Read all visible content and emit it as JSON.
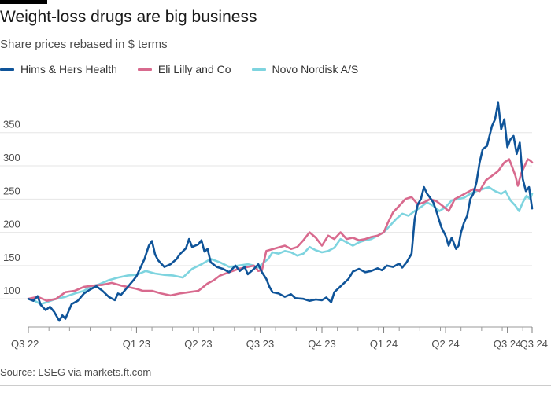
{
  "header": {
    "title": "Weight-loss drugs are big business",
    "subtitle": "Share prices rebased in $ terms"
  },
  "legend": [
    {
      "name": "Hims & Hers Health",
      "color": "#0f5499"
    },
    {
      "name": "Eli Lilly and Co",
      "color": "#d86a8e"
    },
    {
      "name": "Novo Nordisk A/S",
      "color": "#7ed4df"
    }
  ],
  "footer": {
    "source": "Source: LSEG via markets.ft.com"
  },
  "chart_data": {
    "type": "line",
    "title": "Weight-loss drugs are big business",
    "subtitle": "Share prices rebased in $ terms",
    "xlabel": "",
    "ylabel": "",
    "xlim": [
      0,
      8.15
    ],
    "ylim": [
      60,
      410
    ],
    "x_ticks": [
      {
        "x": 0,
        "label": "Q3 22"
      },
      {
        "x": 1.75,
        "label": "Q1 23"
      },
      {
        "x": 2.75,
        "label": "Q2 23"
      },
      {
        "x": 3.75,
        "label": "Q3 23"
      },
      {
        "x": 4.75,
        "label": "Q4 23"
      },
      {
        "x": 5.75,
        "label": "Q1 24"
      },
      {
        "x": 6.75,
        "label": "Q2 24"
      },
      {
        "x": 7.75,
        "label": "Q3 24"
      },
      {
        "x": 8.15,
        "label": "Q3 24"
      }
    ],
    "y_ticks": [
      100,
      150,
      200,
      250,
      300,
      350
    ],
    "grid": true,
    "legend_position": "top-left",
    "series": [
      {
        "name": "Hims & Hers Health",
        "color": "#0f5499",
        "points": [
          [
            0,
            100
          ],
          [
            0.08,
            97
          ],
          [
            0.15,
            104
          ],
          [
            0.2,
            91
          ],
          [
            0.28,
            83
          ],
          [
            0.35,
            88
          ],
          [
            0.42,
            80
          ],
          [
            0.5,
            67
          ],
          [
            0.55,
            75
          ],
          [
            0.6,
            70
          ],
          [
            0.7,
            92
          ],
          [
            0.8,
            97
          ],
          [
            0.9,
            108
          ],
          [
            1.0,
            114
          ],
          [
            1.1,
            119
          ],
          [
            1.2,
            112
          ],
          [
            1.3,
            103
          ],
          [
            1.4,
            98
          ],
          [
            1.45,
            108
          ],
          [
            1.5,
            106
          ],
          [
            1.6,
            117
          ],
          [
            1.7,
            128
          ],
          [
            1.75,
            134
          ],
          [
            1.82,
            148
          ],
          [
            1.88,
            160
          ],
          [
            1.95,
            180
          ],
          [
            2.0,
            187
          ],
          [
            2.05,
            167
          ],
          [
            2.1,
            158
          ],
          [
            2.2,
            148
          ],
          [
            2.3,
            152
          ],
          [
            2.4,
            160
          ],
          [
            2.45,
            167
          ],
          [
            2.55,
            176
          ],
          [
            2.6,
            190
          ],
          [
            2.65,
            178
          ],
          [
            2.75,
            182
          ],
          [
            2.8,
            188
          ],
          [
            2.85,
            171
          ],
          [
            2.9,
            175
          ],
          [
            2.95,
            155
          ],
          [
            3.05,
            148
          ],
          [
            3.15,
            145
          ],
          [
            3.25,
            140
          ],
          [
            3.35,
            150
          ],
          [
            3.42,
            142
          ],
          [
            3.5,
            148
          ],
          [
            3.55,
            137
          ],
          [
            3.65,
            145
          ],
          [
            3.72,
            152
          ],
          [
            3.78,
            140
          ],
          [
            3.85,
            130
          ],
          [
            3.9,
            118
          ],
          [
            3.95,
            110
          ],
          [
            4.05,
            108
          ],
          [
            4.15,
            103
          ],
          [
            4.25,
            107
          ],
          [
            4.32,
            101
          ],
          [
            4.45,
            100
          ],
          [
            4.55,
            97
          ],
          [
            4.65,
            99
          ],
          [
            4.75,
            98
          ],
          [
            4.82,
            102
          ],
          [
            4.9,
            95
          ],
          [
            4.95,
            110
          ],
          [
            5.02,
            116
          ],
          [
            5.1,
            123
          ],
          [
            5.18,
            130
          ],
          [
            5.25,
            141
          ],
          [
            5.35,
            145
          ],
          [
            5.45,
            140
          ],
          [
            5.55,
            142
          ],
          [
            5.65,
            146
          ],
          [
            5.72,
            143
          ],
          [
            5.8,
            150
          ],
          [
            5.9,
            148
          ],
          [
            6.0,
            153
          ],
          [
            6.05,
            147
          ],
          [
            6.12,
            155
          ],
          [
            6.2,
            168
          ],
          [
            6.25,
            220
          ],
          [
            6.3,
            242
          ],
          [
            6.35,
            250
          ],
          [
            6.4,
            268
          ],
          [
            6.45,
            258
          ],
          [
            6.5,
            252
          ],
          [
            6.55,
            245
          ],
          [
            6.6,
            232
          ],
          [
            6.68,
            208
          ],
          [
            6.75,
            195
          ],
          [
            6.8,
            180
          ],
          [
            6.85,
            192
          ],
          [
            6.92,
            175
          ],
          [
            6.96,
            180
          ],
          [
            7.0,
            200
          ],
          [
            7.05,
            215
          ],
          [
            7.1,
            225
          ],
          [
            7.15,
            250
          ],
          [
            7.2,
            258
          ],
          [
            7.25,
            275
          ],
          [
            7.3,
            305
          ],
          [
            7.35,
            325
          ],
          [
            7.42,
            330
          ],
          [
            7.5,
            360
          ],
          [
            7.55,
            370
          ],
          [
            7.6,
            395
          ],
          [
            7.65,
            355
          ],
          [
            7.7,
            370
          ],
          [
            7.75,
            328
          ],
          [
            7.8,
            340
          ],
          [
            7.85,
            345
          ],
          [
            7.9,
            318
          ],
          [
            7.95,
            335
          ],
          [
            8.0,
            280
          ],
          [
            8.05,
            262
          ],
          [
            8.1,
            268
          ],
          [
            8.15,
            236
          ]
        ]
      },
      {
        "name": "Eli Lilly and Co",
        "color": "#d86a8e",
        "points": [
          [
            0,
            100
          ],
          [
            0.15,
            103
          ],
          [
            0.3,
            97
          ],
          [
            0.45,
            100
          ],
          [
            0.6,
            110
          ],
          [
            0.75,
            112
          ],
          [
            0.9,
            118
          ],
          [
            1.05,
            120
          ],
          [
            1.2,
            121
          ],
          [
            1.35,
            124
          ],
          [
            1.5,
            120
          ],
          [
            1.6,
            118
          ],
          [
            1.75,
            115
          ],
          [
            1.85,
            112
          ],
          [
            2.0,
            112
          ],
          [
            2.15,
            108
          ],
          [
            2.3,
            105
          ],
          [
            2.45,
            108
          ],
          [
            2.6,
            110
          ],
          [
            2.75,
            112
          ],
          [
            2.9,
            123
          ],
          [
            3.0,
            128
          ],
          [
            3.1,
            135
          ],
          [
            3.25,
            140
          ],
          [
            3.4,
            145
          ],
          [
            3.55,
            148
          ],
          [
            3.65,
            150
          ],
          [
            3.72,
            142
          ],
          [
            3.78,
            143
          ],
          [
            3.85,
            172
          ],
          [
            4.0,
            176
          ],
          [
            4.15,
            180
          ],
          [
            4.25,
            175
          ],
          [
            4.35,
            178
          ],
          [
            4.45,
            188
          ],
          [
            4.55,
            200
          ],
          [
            4.65,
            192
          ],
          [
            4.75,
            180
          ],
          [
            4.85,
            195
          ],
          [
            4.95,
            190
          ],
          [
            5.05,
            200
          ],
          [
            5.15,
            190
          ],
          [
            5.25,
            192
          ],
          [
            5.35,
            188
          ],
          [
            5.45,
            190
          ],
          [
            5.55,
            193
          ],
          [
            5.65,
            195
          ],
          [
            5.75,
            200
          ],
          [
            5.82,
            215
          ],
          [
            5.9,
            230
          ],
          [
            6.0,
            240
          ],
          [
            6.1,
            250
          ],
          [
            6.2,
            253
          ],
          [
            6.3,
            242
          ],
          [
            6.4,
            245
          ],
          [
            6.5,
            250
          ],
          [
            6.6,
            247
          ],
          [
            6.7,
            240
          ],
          [
            6.8,
            232
          ],
          [
            6.9,
            250
          ],
          [
            7.0,
            255
          ],
          [
            7.1,
            260
          ],
          [
            7.2,
            265
          ],
          [
            7.3,
            262
          ],
          [
            7.4,
            278
          ],
          [
            7.5,
            285
          ],
          [
            7.6,
            292
          ],
          [
            7.7,
            305
          ],
          [
            7.78,
            310
          ],
          [
            7.82,
            300
          ],
          [
            7.88,
            285
          ],
          [
            7.92,
            270
          ],
          [
            7.97,
            288
          ],
          [
            8.03,
            300
          ],
          [
            8.08,
            310
          ],
          [
            8.12,
            308
          ],
          [
            8.15,
            305
          ]
        ]
      },
      {
        "name": "Novo Nordisk A/S",
        "color": "#7ed4df",
        "points": [
          [
            0,
            100
          ],
          [
            0.1,
            97
          ],
          [
            0.2,
            92
          ],
          [
            0.3,
            95
          ],
          [
            0.45,
            100
          ],
          [
            0.6,
            103
          ],
          [
            0.75,
            108
          ],
          [
            0.9,
            112
          ],
          [
            1.0,
            118
          ],
          [
            1.15,
            122
          ],
          [
            1.3,
            128
          ],
          [
            1.45,
            132
          ],
          [
            1.6,
            135
          ],
          [
            1.75,
            136
          ],
          [
            1.9,
            142
          ],
          [
            2.05,
            138
          ],
          [
            2.2,
            136
          ],
          [
            2.35,
            135
          ],
          [
            2.5,
            132
          ],
          [
            2.65,
            145
          ],
          [
            2.8,
            152
          ],
          [
            2.95,
            160
          ],
          [
            3.1,
            155
          ],
          [
            3.25,
            148
          ],
          [
            3.4,
            150
          ],
          [
            3.55,
            152
          ],
          [
            3.65,
            150
          ],
          [
            3.72,
            147
          ],
          [
            3.8,
            154
          ],
          [
            3.88,
            160
          ],
          [
            3.95,
            170
          ],
          [
            4.05,
            168
          ],
          [
            4.15,
            172
          ],
          [
            4.25,
            170
          ],
          [
            4.35,
            165
          ],
          [
            4.45,
            168
          ],
          [
            4.55,
            178
          ],
          [
            4.65,
            173
          ],
          [
            4.75,
            170
          ],
          [
            4.85,
            172
          ],
          [
            4.95,
            177
          ],
          [
            5.05,
            190
          ],
          [
            5.15,
            185
          ],
          [
            5.25,
            180
          ],
          [
            5.35,
            185
          ],
          [
            5.45,
            188
          ],
          [
            5.55,
            190
          ],
          [
            5.65,
            195
          ],
          [
            5.75,
            200
          ],
          [
            5.85,
            210
          ],
          [
            5.95,
            220
          ],
          [
            6.05,
            228
          ],
          [
            6.15,
            225
          ],
          [
            6.25,
            232
          ],
          [
            6.35,
            238
          ],
          [
            6.45,
            245
          ],
          [
            6.55,
            240
          ],
          [
            6.65,
            232
          ],
          [
            6.75,
            238
          ],
          [
            6.85,
            248
          ],
          [
            6.95,
            250
          ],
          [
            7.05,
            252
          ],
          [
            7.15,
            258
          ],
          [
            7.25,
            262
          ],
          [
            7.35,
            265
          ],
          [
            7.45,
            268
          ],
          [
            7.55,
            262
          ],
          [
            7.65,
            258
          ],
          [
            7.72,
            262
          ],
          [
            7.8,
            248
          ],
          [
            7.88,
            240
          ],
          [
            7.94,
            232
          ],
          [
            8.0,
            245
          ],
          [
            8.06,
            255
          ],
          [
            8.12,
            250
          ],
          [
            8.15,
            258
          ]
        ]
      }
    ]
  }
}
